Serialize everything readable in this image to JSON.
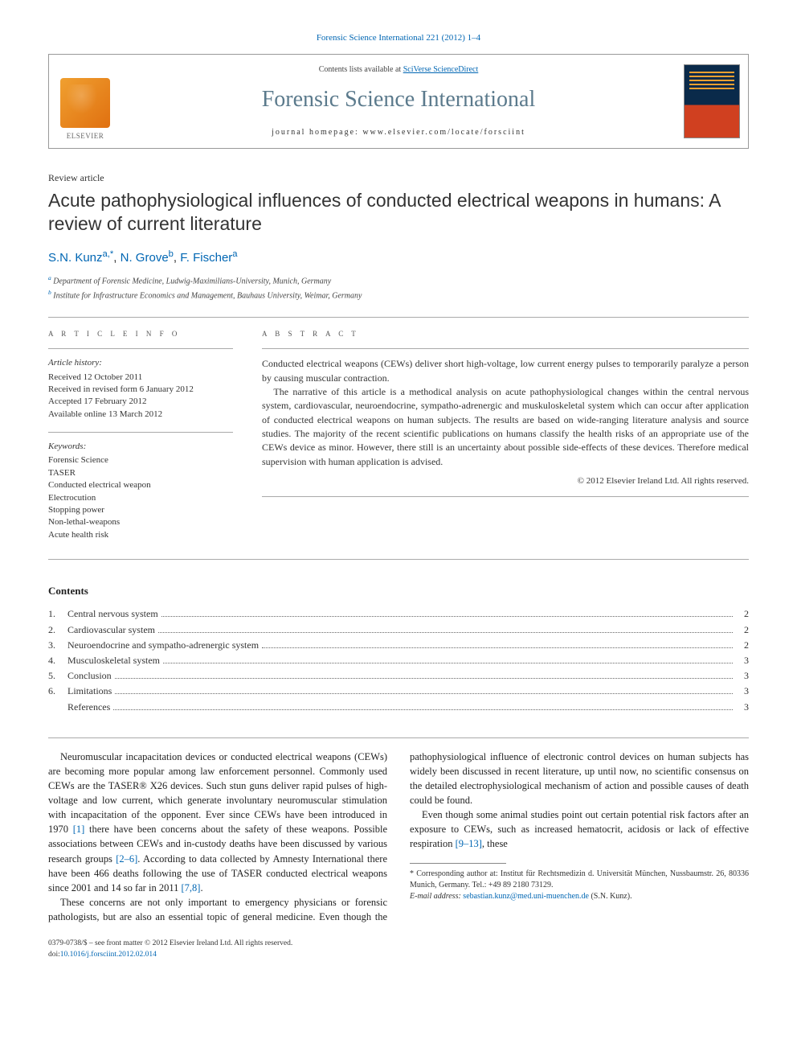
{
  "journal_ref": "Forensic Science International 221 (2012) 1–4",
  "header": {
    "contents_prefix": "Contents lists available at ",
    "contents_link": "SciVerse ScienceDirect",
    "journal_title": "Forensic Science International",
    "homepage_label": "journal homepage: www.elsevier.com/locate/forsciint",
    "elsevier_label": "ELSEVIER"
  },
  "article_type": "Review article",
  "title": "Acute pathophysiological influences of conducted electrical weapons in humans: A review of current literature",
  "authors": [
    {
      "name": "S.N. Kunz",
      "affil_marks": "a,*"
    },
    {
      "name": "N. Grove",
      "affil_marks": "b"
    },
    {
      "name": "F. Fischer",
      "affil_marks": "a"
    }
  ],
  "affiliations": [
    {
      "mark": "a",
      "text": "Department of Forensic Medicine, Ludwig-Maximilians-University, Munich, Germany"
    },
    {
      "mark": "b",
      "text": "Institute for Infrastructure Economics and Management, Bauhaus University, Weimar, Germany"
    }
  ],
  "info": {
    "heading": "A R T I C L E   I N F O",
    "history_label": "Article history:",
    "history": [
      "Received 12 October 2011",
      "Received in revised form 6 January 2012",
      "Accepted 17 February 2012",
      "Available online 13 March 2012"
    ],
    "keywords_label": "Keywords:",
    "keywords": [
      "Forensic Science",
      "TASER",
      "Conducted electrical weapon",
      "Electrocution",
      "Stopping power",
      "Non-lethal-weapons",
      "Acute health risk"
    ]
  },
  "abstract": {
    "heading": "A B S T R A C T",
    "paragraphs": [
      "Conducted electrical weapons (CEWs) deliver short high-voltage, low current energy pulses to temporarily paralyze a person by causing muscular contraction.",
      "The narrative of this article is a methodical analysis on acute pathophysiological changes within the central nervous system, cardiovascular, neuroendocrine, sympatho-adrenergic and muskuloskeletal system which can occur after application of conducted electrical weapons on human subjects. The results are based on wide-ranging literature analysis and source studies. The majority of the recent scientific publications on humans classify the health risks of an appropriate use of the CEWs device as minor. However, there still is an uncertainty about possible side-effects of these devices. Therefore medical supervision with human application is advised."
    ],
    "copyright": "© 2012 Elsevier Ireland Ltd. All rights reserved."
  },
  "contents": {
    "title": "Contents",
    "items": [
      {
        "num": "1.",
        "label": "Central nervous system",
        "page": "2"
      },
      {
        "num": "2.",
        "label": "Cardiovascular system",
        "page": "2"
      },
      {
        "num": "3.",
        "label": "Neuroendocrine and sympatho-adrenergic system",
        "page": "2"
      },
      {
        "num": "4.",
        "label": "Musculoskeletal system",
        "page": "3"
      },
      {
        "num": "5.",
        "label": "Conclusion",
        "page": "3"
      },
      {
        "num": "6.",
        "label": "Limitations",
        "page": "3"
      },
      {
        "num": "",
        "label": "References",
        "page": "3"
      }
    ]
  },
  "body": {
    "p1_a": "Neuromuscular incapacitation devices or conducted electrical weapons (CEWs) are becoming more popular among law enforcement personnel. Commonly used CEWs are the TASER® X26 devices. Such stun guns deliver rapid pulses of high-voltage and low current, which generate involuntary neuromuscular stimulation with incapacitation of the opponent. Ever since CEWs have been introduced in 1970 ",
    "p1_ref1": "[1]",
    "p1_b": " there have been concerns about the safety of these weapons. Possible associations between CEWs and in-custody deaths have been discussed",
    "p2_a": "by various research groups ",
    "p2_ref1": "[2–6]",
    "p2_b": ". According to data collected by Amnesty International there have been 466 deaths following the use of TASER conducted electrical weapons since 2001 and 14 so far in 2011 ",
    "p2_ref2": "[7,8]",
    "p2_c": ".",
    "p3": "These concerns are not only important to emergency physicians or forensic pathologists, but are also an essential topic of general medicine. Even though the pathophysiological influence of electronic control devices on human subjects has widely been discussed in recent literature, up until now, no scientific consensus on the detailed electrophysiological mechanism of action and possible causes of death could be found.",
    "p4_a": "Even though some animal studies point out certain potential risk factors after an exposure to CEWs, such as increased hematocrit, acidosis or lack of effective respiration ",
    "p4_ref1": "[9–13]",
    "p4_b": ", these"
  },
  "footnote": {
    "corr_label": "* Corresponding author at: Institut für Rechtsmedizin d. Universität München, Nussbaumstr. 26, 80336 Munich, Germany. Tel.: +49 89 2180 73129.",
    "email_label": "E-mail address: ",
    "email": "sebastian.kunz@med.uni-muenchen.de",
    "email_paren": " (S.N. Kunz)."
  },
  "footer": {
    "line1": "0379-0738/$ – see front matter © 2012 Elsevier Ireland Ltd. All rights reserved.",
    "doi_label": "doi:",
    "doi": "10.1016/j.forsciint.2012.02.014"
  },
  "colors": {
    "link": "#0066b3",
    "journal_title": "#5b7a8c",
    "text": "#222222",
    "muted": "#555555",
    "rule": "#aaaaaa"
  }
}
